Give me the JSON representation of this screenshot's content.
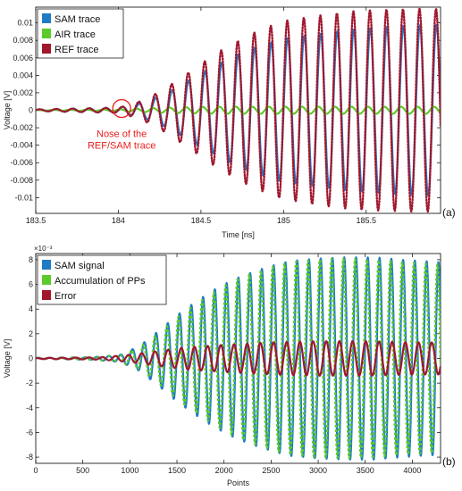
{
  "chart_data": [
    {
      "type": "line",
      "panel_label": "(a)",
      "xlabel": "Time [ns]",
      "ylabel": "Voltage [V]",
      "xlim": [
        183.5,
        185.95
      ],
      "ylim": [
        -0.0118,
        0.0118
      ],
      "x_ticks": [
        "183.5",
        "184",
        "184.5",
        "185",
        "185.5"
      ],
      "x_tick_values": [
        183.5,
        184.0,
        184.5,
        185.0,
        185.5
      ],
      "y_ticks": [
        "0.01",
        "0.008",
        "0.006",
        "0.004",
        "0.002",
        "0",
        "-0.002",
        "-0.004",
        "-0.006",
        "-0.008",
        "-0.01"
      ],
      "y_tick_values": [
        0.01,
        0.008,
        0.006,
        0.004,
        0.002,
        0,
        -0.002,
        -0.004,
        -0.006,
        -0.008,
        -0.01
      ],
      "legend_position": "top-left",
      "annotation": {
        "text_lines": [
          "Nose of the",
          "REF/SAM trace"
        ],
        "x": 184.02,
        "y": 0.0002,
        "color": "#e8201e"
      },
      "series": [
        {
          "name": "SAM trace",
          "color": "#1f7bc4",
          "style": "solid",
          "x": [
            183.5,
            183.75,
            184.0,
            184.1,
            184.2,
            184.3,
            184.4,
            184.5,
            184.6,
            184.7,
            184.8,
            184.9,
            185.0,
            185.2,
            185.4,
            185.6,
            185.8,
            185.95
          ],
          "amplitude": [
            0.0001,
            0.0002,
            0.0003,
            0.0006,
            0.0012,
            0.002,
            0.0031,
            0.0042,
            0.0052,
            0.0062,
            0.007,
            0.0076,
            0.0082,
            0.0087,
            0.0092,
            0.0095,
            0.0097,
            0.0098
          ],
          "period": 0.1
        },
        {
          "name": "AIR trace",
          "color": "#5bcb2c",
          "style": "solid",
          "x": [
            183.5,
            184.0,
            184.3,
            184.6,
            185.0,
            185.5,
            185.95
          ],
          "amplitude": [
            3e-05,
            0.0001,
            0.0003,
            0.0004,
            0.0004,
            0.0004,
            0.0004
          ],
          "period": 0.1
        },
        {
          "name": "REF trace",
          "color": "#a0172e",
          "style": "dotted",
          "x": [
            183.5,
            183.75,
            184.0,
            184.1,
            184.2,
            184.3,
            184.4,
            184.5,
            184.6,
            184.7,
            184.8,
            184.9,
            185.0,
            185.2,
            185.4,
            185.6,
            185.8,
            185.95
          ],
          "amplitude": [
            0.0001,
            0.0002,
            0.0003,
            0.0008,
            0.0016,
            0.0027,
            0.004,
            0.0053,
            0.0066,
            0.0077,
            0.0087,
            0.0095,
            0.0102,
            0.0108,
            0.0113,
            0.0115,
            0.0116,
            0.0116
          ],
          "period": 0.1
        }
      ]
    },
    {
      "type": "line",
      "panel_label": "(b)",
      "xlabel": "Points",
      "ylabel": "Voltage [V]",
      "y_exponent": "×10⁻³",
      "xlim": [
        0,
        4300
      ],
      "ylim": [
        -8.5,
        8.5
      ],
      "x_ticks": [
        "0",
        "500",
        "1000",
        "1500",
        "2000",
        "2500",
        "3000",
        "3500",
        "4000"
      ],
      "x_tick_values": [
        0,
        500,
        1000,
        1500,
        2000,
        2500,
        3000,
        3500,
        4000
      ],
      "y_ticks": [
        "8",
        "6",
        "4",
        "2",
        "0",
        "-2",
        "-4",
        "-6",
        "-8"
      ],
      "y_tick_values": [
        8,
        6,
        4,
        2,
        0,
        -2,
        -4,
        -6,
        -8
      ],
      "legend_position": "top-left",
      "series": [
        {
          "name": "SAM signal",
          "color": "#1f7bc4",
          "style": "solid",
          "x": [
            0,
            600,
            900,
            1100,
            1300,
            1500,
            1700,
            1900,
            2100,
            2300,
            2500,
            2700,
            3000,
            3300,
            3600,
            3900,
            4300
          ],
          "amplitude": [
            0.05,
            0.1,
            0.3,
            1.0,
            2.2,
            3.5,
            4.6,
            5.6,
            6.4,
            7.0,
            7.5,
            7.9,
            8.1,
            8.2,
            8.2,
            8.0,
            7.8
          ],
          "period": 125
        },
        {
          "name": "Accumulation of PPs",
          "color": "#5bcb2c",
          "style": "dashed",
          "x": [
            0,
            600,
            900,
            1100,
            1300,
            1500,
            1700,
            1900,
            2100,
            2300,
            2500,
            2700,
            3000,
            3300,
            3600,
            3900,
            4300
          ],
          "amplitude": [
            0.05,
            0.1,
            0.3,
            0.9,
            2.0,
            3.3,
            4.4,
            5.4,
            6.3,
            6.9,
            7.4,
            7.8,
            8.0,
            8.1,
            8.0,
            7.8,
            7.6
          ],
          "period": 125
        },
        {
          "name": "Error",
          "color": "#a0172e",
          "style": "solid",
          "x": [
            0,
            700,
            1000,
            1300,
            1600,
            2000,
            2500,
            3000,
            3500,
            4000,
            4300
          ],
          "amplitude": [
            0.03,
            0.1,
            0.3,
            0.6,
            0.9,
            1.1,
            1.3,
            1.4,
            1.4,
            1.3,
            1.3
          ],
          "period": 140
        }
      ]
    }
  ]
}
